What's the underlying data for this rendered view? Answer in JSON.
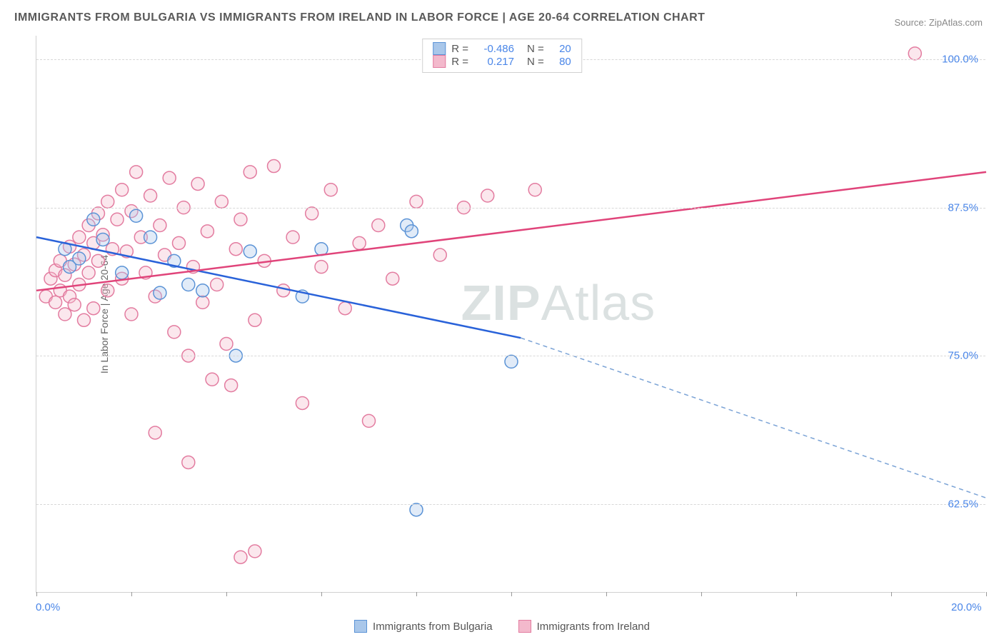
{
  "title": "IMMIGRANTS FROM BULGARIA VS IMMIGRANTS FROM IRELAND IN LABOR FORCE | AGE 20-64 CORRELATION CHART",
  "source": "Source: ZipAtlas.com",
  "y_axis_label": "In Labor Force | Age 20-64",
  "watermark_bold": "ZIP",
  "watermark_rest": "Atlas",
  "chart": {
    "type": "scatter",
    "xlim": [
      0,
      20
    ],
    "ylim": [
      55,
      102
    ],
    "x_ticks": [
      0,
      2,
      4,
      6,
      8,
      10,
      12,
      14,
      16,
      18,
      20
    ],
    "x_tick_labels": {
      "0": "0.0%",
      "20": "20.0%"
    },
    "y_gridlines": [
      62.5,
      75.0,
      87.5,
      100.0
    ],
    "y_tick_labels": [
      "62.5%",
      "75.0%",
      "87.5%",
      "100.0%"
    ],
    "grid_color": "#d8d8d8",
    "background_color": "#ffffff",
    "axis_color": "#d0d0d0",
    "tick_label_color": "#4a86e8",
    "marker_radius": 9,
    "series": [
      {
        "name": "Immigrants from Bulgaria",
        "color_stroke": "#5b93d6",
        "color_fill": "#a9c7ea",
        "R": "-0.486",
        "N": "20",
        "points": [
          [
            0.6,
            84.0
          ],
          [
            0.7,
            82.5
          ],
          [
            0.9,
            83.2
          ],
          [
            1.2,
            86.5
          ],
          [
            1.4,
            84.8
          ],
          [
            1.8,
            82.0
          ],
          [
            2.1,
            86.8
          ],
          [
            2.4,
            85.0
          ],
          [
            2.6,
            80.3
          ],
          [
            2.9,
            83.0
          ],
          [
            3.2,
            81.0
          ],
          [
            3.5,
            80.5
          ],
          [
            4.2,
            75.0
          ],
          [
            4.5,
            83.8
          ],
          [
            5.6,
            80.0
          ],
          [
            6.0,
            84.0
          ],
          [
            7.8,
            86.0
          ],
          [
            7.9,
            85.5
          ],
          [
            8.0,
            62.0
          ],
          [
            10.0,
            74.5
          ]
        ],
        "trend": {
          "x1": 0,
          "y1": 85.0,
          "x2": 10.2,
          "y2": 76.5,
          "x2_dash": 20,
          "y2_dash": 63.0
        }
      },
      {
        "name": "Immigrants from Ireland",
        "color_stroke": "#e37ca0",
        "color_fill": "#f3b9cc",
        "R": "0.217",
        "N": "80",
        "points": [
          [
            0.2,
            80.0
          ],
          [
            0.3,
            81.5
          ],
          [
            0.4,
            82.2
          ],
          [
            0.4,
            79.5
          ],
          [
            0.5,
            83.0
          ],
          [
            0.5,
            80.5
          ],
          [
            0.6,
            81.8
          ],
          [
            0.6,
            78.5
          ],
          [
            0.7,
            84.2
          ],
          [
            0.7,
            80.0
          ],
          [
            0.8,
            82.7
          ],
          [
            0.8,
            79.3
          ],
          [
            0.9,
            85.0
          ],
          [
            0.9,
            81.0
          ],
          [
            1.0,
            83.5
          ],
          [
            1.0,
            78.0
          ],
          [
            1.1,
            86.0
          ],
          [
            1.1,
            82.0
          ],
          [
            1.2,
            84.5
          ],
          [
            1.2,
            79.0
          ],
          [
            1.3,
            87.0
          ],
          [
            1.3,
            83.0
          ],
          [
            1.4,
            85.2
          ],
          [
            1.5,
            80.5
          ],
          [
            1.5,
            88.0
          ],
          [
            1.6,
            84.0
          ],
          [
            1.7,
            86.5
          ],
          [
            1.8,
            81.5
          ],
          [
            1.8,
            89.0
          ],
          [
            1.9,
            83.8
          ],
          [
            2.0,
            87.2
          ],
          [
            2.0,
            78.5
          ],
          [
            2.1,
            90.5
          ],
          [
            2.2,
            85.0
          ],
          [
            2.3,
            82.0
          ],
          [
            2.4,
            88.5
          ],
          [
            2.5,
            80.0
          ],
          [
            2.6,
            86.0
          ],
          [
            2.7,
            83.5
          ],
          [
            2.8,
            90.0
          ],
          [
            2.9,
            77.0
          ],
          [
            3.0,
            84.5
          ],
          [
            3.1,
            87.5
          ],
          [
            3.2,
            75.0
          ],
          [
            3.3,
            82.5
          ],
          [
            3.4,
            89.5
          ],
          [
            3.5,
            79.5
          ],
          [
            3.6,
            85.5
          ],
          [
            3.7,
            73.0
          ],
          [
            3.8,
            81.0
          ],
          [
            3.9,
            88.0
          ],
          [
            4.0,
            76.0
          ],
          [
            4.1,
            72.5
          ],
          [
            4.2,
            84.0
          ],
          [
            4.3,
            86.5
          ],
          [
            4.5,
            90.5
          ],
          [
            4.6,
            78.0
          ],
          [
            4.8,
            83.0
          ],
          [
            5.0,
            91.0
          ],
          [
            5.2,
            80.5
          ],
          [
            5.4,
            85.0
          ],
          [
            5.6,
            71.0
          ],
          [
            5.8,
            87.0
          ],
          [
            6.0,
            82.5
          ],
          [
            6.2,
            89.0
          ],
          [
            6.5,
            79.0
          ],
          [
            6.8,
            84.5
          ],
          [
            7.0,
            69.5
          ],
          [
            7.2,
            86.0
          ],
          [
            7.5,
            81.5
          ],
          [
            8.0,
            88.0
          ],
          [
            8.5,
            83.5
          ],
          [
            9.0,
            87.5
          ],
          [
            9.5,
            88.5
          ],
          [
            10.5,
            89.0
          ],
          [
            4.3,
            58.0
          ],
          [
            4.6,
            58.5
          ],
          [
            3.2,
            66.0
          ],
          [
            2.5,
            68.5
          ],
          [
            18.5,
            100.5
          ]
        ],
        "trend": {
          "x1": 0,
          "y1": 80.5,
          "x2": 20,
          "y2": 90.5
        }
      }
    ]
  },
  "legend_top": {
    "r_label": "R =",
    "n_label": "N ="
  },
  "legend_bottom": [
    {
      "label": "Immigrants from Bulgaria",
      "stroke": "#5b93d6",
      "fill": "#a9c7ea"
    },
    {
      "label": "Immigrants from Ireland",
      "stroke": "#e37ca0",
      "fill": "#f3b9cc"
    }
  ]
}
